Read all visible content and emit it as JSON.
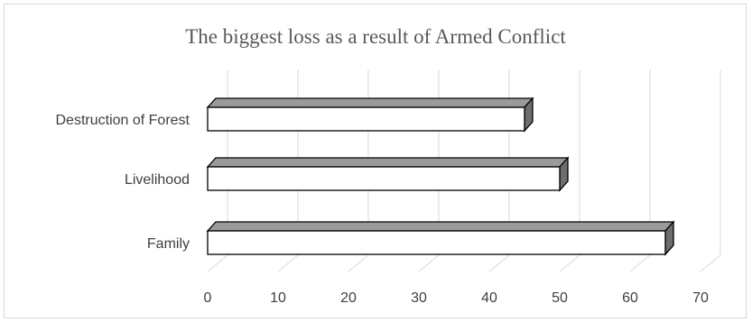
{
  "chart_data": {
    "type": "bar",
    "orientation": "horizontal",
    "style": "3d",
    "title": "The biggest loss as a result of Armed Conflict",
    "categories": [
      "Family",
      "Livelihood",
      "Destruction of Forest"
    ],
    "values": [
      65,
      50,
      45
    ],
    "xlim": [
      0,
      70
    ],
    "x_ticks": [
      "0",
      "10",
      "20",
      "30",
      "40",
      "50",
      "60",
      "70"
    ],
    "grid": true,
    "legend": "none",
    "colors": {
      "bar_front": "#ffffff",
      "bar_top": "#9a9a9a",
      "bar_side": "#6e6e6e",
      "bar_outline": "#000000",
      "grid": "#d9d9d9",
      "text": "#404040",
      "title": "#595959"
    }
  }
}
